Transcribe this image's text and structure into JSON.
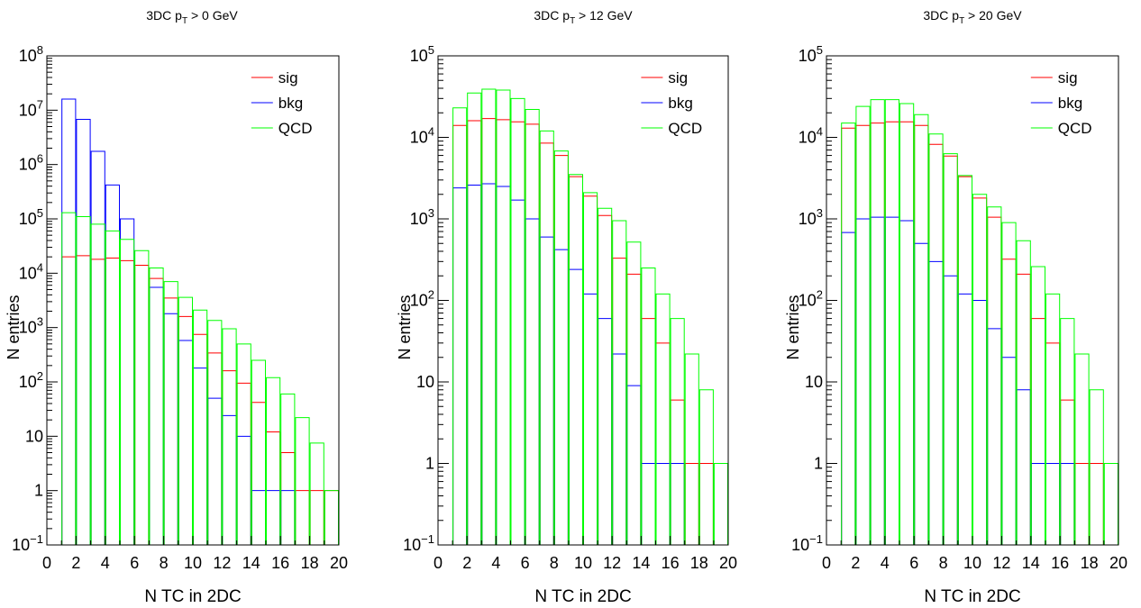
{
  "chart_data": [
    {
      "type": "bar",
      "title_main": "3DC p",
      "title_sub": "T",
      "title_rest": " > 0 GeV",
      "xlabel": "N TC in 2DC",
      "ylabel": "N entries",
      "x_ticks": [
        "0",
        "2",
        "4",
        "6",
        "8",
        "10",
        "12",
        "14",
        "16",
        "18",
        "20"
      ],
      "y_ticks": [
        {
          "base": "10",
          "exp": "8"
        },
        {
          "base": "10",
          "exp": "7"
        },
        {
          "base": "10",
          "exp": "6"
        },
        {
          "base": "10",
          "exp": "5"
        },
        {
          "base": "10",
          "exp": "4"
        },
        {
          "base": "10",
          "exp": "3"
        },
        {
          "base": "10",
          "exp": "2"
        },
        {
          "base": "10",
          "exp": ""
        },
        {
          "base": "1",
          "exp": ""
        },
        {
          "base": "10",
          "exp": "−1"
        }
      ],
      "xlim": [
        0,
        20
      ],
      "ylim": [
        0.1,
        100000000
      ],
      "log_y": true,
      "legend_position": "top-right",
      "series": [
        {
          "name": "sig",
          "color": "#ff0000",
          "values": [
            0,
            20000,
            21000,
            18000,
            19000,
            17000,
            14000,
            8000,
            3500,
            1600,
            750,
            340,
            160,
            95,
            42,
            12,
            5,
            1,
            1,
            1
          ]
        },
        {
          "name": "bkg",
          "color": "#0000ff",
          "values": [
            0,
            16000000,
            6800000,
            1750000,
            420000,
            100000,
            0,
            5500,
            1800,
            580,
            180,
            50,
            24,
            10,
            1,
            1,
            1,
            0,
            0,
            0
          ]
        },
        {
          "name": "QCD",
          "color": "#00ff00",
          "values": [
            0,
            130000,
            110000,
            80000,
            60000,
            42000,
            26000,
            12500,
            7000,
            3600,
            2100,
            1350,
            950,
            500,
            250,
            120,
            60,
            22,
            7.5,
            1
          ]
        }
      ]
    },
    {
      "type": "bar",
      "title_main": "3DC p",
      "title_sub": "T",
      "title_rest": " > 12 GeV",
      "xlabel": "N TC in 2DC",
      "ylabel": "N entries",
      "x_ticks": [
        "0",
        "2",
        "4",
        "6",
        "8",
        "10",
        "12",
        "14",
        "16",
        "18",
        "20"
      ],
      "y_ticks": [
        {
          "base": "10",
          "exp": "5"
        },
        {
          "base": "10",
          "exp": "4"
        },
        {
          "base": "10",
          "exp": "3"
        },
        {
          "base": "10",
          "exp": "2"
        },
        {
          "base": "10",
          "exp": ""
        },
        {
          "base": "1",
          "exp": ""
        },
        {
          "base": "10",
          "exp": "−1"
        }
      ],
      "xlim": [
        0,
        20
      ],
      "ylim": [
        0.1,
        100000
      ],
      "log_y": true,
      "legend_position": "top-right",
      "series": [
        {
          "name": "sig",
          "color": "#ff0000",
          "values": [
            0,
            14000,
            16000,
            17000,
            16500,
            15500,
            14500,
            8500,
            6000,
            3300,
            1900,
            1100,
            330,
            210,
            60,
            30,
            6,
            1,
            1,
            0
          ]
        },
        {
          "name": "bkg",
          "color": "#0000ff",
          "values": [
            0,
            2400,
            2600,
            2700,
            2500,
            1700,
            1000,
            600,
            420,
            240,
            120,
            60,
            22,
            9,
            1,
            1,
            1,
            0,
            0,
            0
          ]
        },
        {
          "name": "QCD",
          "color": "#00ff00",
          "values": [
            0,
            23000,
            35000,
            39000,
            38000,
            30000,
            22000,
            12000,
            6800,
            3500,
            2100,
            1350,
            950,
            520,
            250,
            120,
            60,
            22,
            8,
            1
          ]
        }
      ]
    },
    {
      "type": "bar",
      "title_main": "3DC p",
      "title_sub": "T",
      "title_rest": " > 20 GeV",
      "xlabel": "N TC in 2DC",
      "ylabel": "N entries",
      "x_ticks": [
        "0",
        "2",
        "4",
        "6",
        "8",
        "10",
        "12",
        "14",
        "16",
        "18",
        "20"
      ],
      "y_ticks": [
        {
          "base": "10",
          "exp": "5"
        },
        {
          "base": "10",
          "exp": "4"
        },
        {
          "base": "10",
          "exp": "3"
        },
        {
          "base": "10",
          "exp": "2"
        },
        {
          "base": "10",
          "exp": ""
        },
        {
          "base": "1",
          "exp": ""
        },
        {
          "base": "10",
          "exp": "−1"
        }
      ],
      "xlim": [
        0,
        20
      ],
      "ylim": [
        0.1,
        100000
      ],
      "log_y": true,
      "legend_position": "top-right",
      "series": [
        {
          "name": "sig",
          "color": "#ff0000",
          "values": [
            0,
            13000,
            14000,
            15000,
            15500,
            15500,
            14000,
            8200,
            5900,
            3300,
            1800,
            1050,
            320,
            210,
            60,
            30,
            6,
            1,
            1,
            0
          ]
        },
        {
          "name": "bkg",
          "color": "#0000ff",
          "values": [
            0,
            680,
            1000,
            1050,
            1050,
            950,
            500,
            300,
            200,
            120,
            100,
            45,
            20,
            8,
            1,
            1,
            1,
            0,
            0,
            0
          ]
        },
        {
          "name": "QCD",
          "color": "#00ff00",
          "values": [
            0,
            15000,
            24000,
            29000,
            29000,
            26000,
            19000,
            11000,
            6300,
            3400,
            2000,
            1400,
            900,
            540,
            260,
            120,
            60,
            22,
            8,
            1
          ]
        }
      ]
    }
  ]
}
